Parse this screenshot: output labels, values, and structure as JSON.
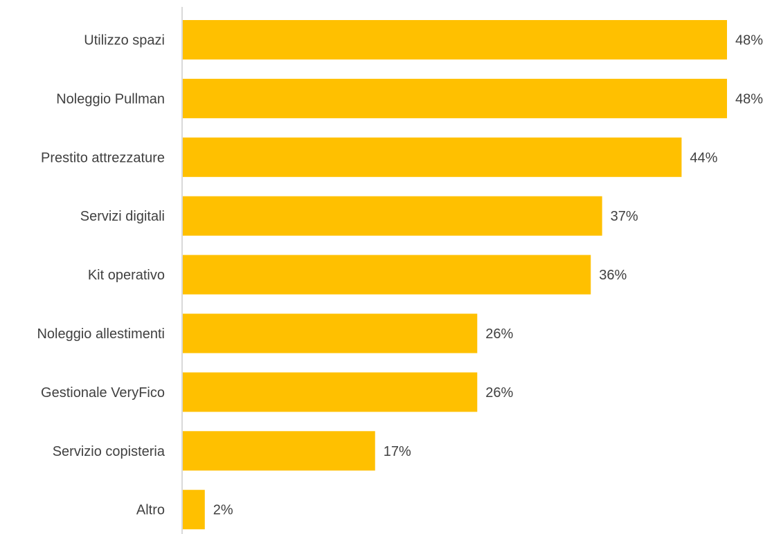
{
  "chart_data": {
    "type": "bar",
    "orientation": "horizontal",
    "categories": [
      "Utilizzo spazi",
      "Noleggio Pullman",
      "Prestito attrezzature",
      "Servizi digitali",
      "Kit operativo",
      "Noleggio allestimenti",
      "Gestionale VeryFico",
      "Servizio copisteria",
      "Altro"
    ],
    "values": [
      48,
      48,
      44,
      37,
      36,
      26,
      26,
      17,
      2
    ],
    "value_labels": [
      "48%",
      "48%",
      "44%",
      "37%",
      "36%",
      "26%",
      "26%",
      "17%",
      "2%"
    ],
    "unit": "%",
    "xlim": [
      0,
      48
    ],
    "grid": false,
    "legend": "none",
    "bar_color": "#FFC000",
    "axis_color": "#D9D9D9",
    "text_color": "#404040"
  }
}
